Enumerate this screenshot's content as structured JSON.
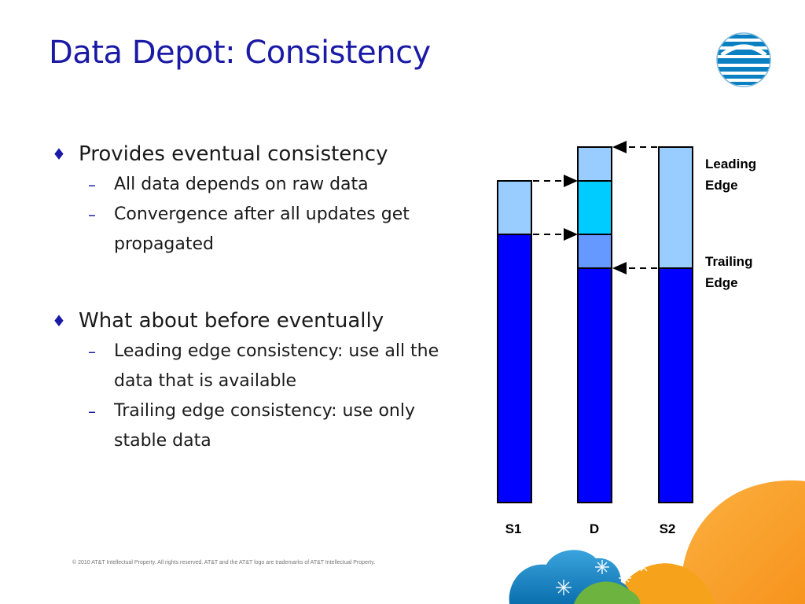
{
  "title": "Data Depot: Consistency",
  "bullets": [
    {
      "text": "Provides eventual consistency",
      "sub": [
        "All data depends on raw data",
        "Convergence after all updates get propagated"
      ]
    },
    {
      "text": "What about before eventually",
      "sub": [
        "Leading edge consistency: use all the data that is available",
        "Trailing edge consistency: use only stable data"
      ]
    }
  ],
  "diagram": {
    "columns": [
      {
        "label": "S1"
      },
      {
        "label": "D"
      },
      {
        "label": "S2"
      }
    ],
    "edge_labels": {
      "leading_line1": "Leading",
      "leading_line2": "Edge",
      "trailing_line1": "Trailing",
      "trailing_line2": "Edge"
    },
    "colors": {
      "stable": "#0000ff",
      "pending_light": "#99ccff",
      "pending_cyan": "#00ccff",
      "pending_mid": "#6699ff"
    }
  },
  "footer": "© 2010 AT&T Intellectual Property. All rights reserved. AT&T and the AT&T logo are trademarks of AT&T Intellectual Property.",
  "colors": {
    "title": "#1a1aa6",
    "accent_orange": "#f7941d",
    "accent_blue": "#1e88c8",
    "accent_green": "#6db33f"
  }
}
